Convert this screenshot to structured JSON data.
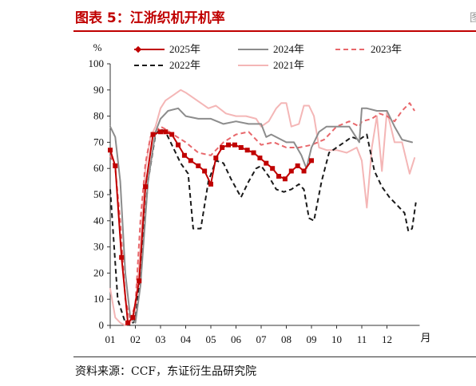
{
  "figure": {
    "title": "图表 5：江浙织机开机率",
    "source": "资料来源：CCF，东证衍生品研究院"
  },
  "colors": {
    "title_red": "#c00000",
    "s2025": "#c00000",
    "s2024": "#8c8c8c",
    "s2023": "#e8676b",
    "s2022": "#1a1a1a",
    "s2021": "#f4b6b6"
  },
  "chart_data": {
    "type": "line",
    "ylabel": "%",
    "xunit": "月",
    "ylim": [
      0,
      100
    ],
    "yticks": [
      0,
      10,
      20,
      30,
      40,
      50,
      60,
      70,
      80,
      90,
      100
    ],
    "xticks": [
      "01",
      "02",
      "03",
      "04",
      "05",
      "06",
      "07",
      "08",
      "09",
      "10",
      "11",
      "12"
    ],
    "xlim": [
      1,
      13.3
    ],
    "grid": false,
    "legend_position": "top",
    "series": [
      {
        "name": "2025年",
        "key": "s2025",
        "style": "solid-marker",
        "x": [
          1.0,
          1.2,
          1.45,
          1.7,
          1.9,
          2.15,
          2.4,
          2.7,
          3.0,
          3.2,
          3.45,
          3.7,
          3.95,
          4.2,
          4.5,
          4.75,
          5.0,
          5.2,
          5.45,
          5.7,
          5.95,
          6.2,
          6.45,
          6.7,
          6.95,
          7.2,
          7.45,
          7.7,
          7.95,
          8.2,
          8.45,
          8.7,
          9.0
        ],
        "y": [
          67,
          61,
          26,
          1,
          3,
          17,
          53,
          73,
          74,
          74,
          73,
          69,
          65,
          63,
          61,
          59,
          54,
          64,
          68,
          69,
          69,
          68,
          67,
          66,
          64,
          62,
          60,
          57,
          56,
          59,
          61,
          59,
          63
        ]
      },
      {
        "name": "2024年",
        "key": "s2024",
        "style": "solid",
        "x": [
          1.0,
          1.2,
          1.4,
          1.6,
          1.8,
          2.0,
          2.2,
          2.5,
          2.8,
          3.0,
          3.3,
          3.7,
          4.0,
          4.5,
          5.0,
          5.5,
          6.0,
          6.5,
          7.0,
          7.2,
          7.4,
          7.8,
          8.0,
          8.3,
          8.6,
          8.8,
          9.0,
          9.3,
          9.6,
          10.0,
          10.5,
          10.9,
          11.0,
          11.2,
          11.6,
          12.0,
          12.3,
          12.6,
          13.0
        ],
        "y": [
          76,
          72,
          55,
          20,
          3,
          1,
          15,
          55,
          74,
          79,
          82,
          83,
          80,
          79,
          79,
          77,
          78,
          77,
          77,
          72,
          73,
          71,
          70,
          70,
          65,
          60,
          68,
          74,
          76,
          76,
          76,
          70,
          83,
          83,
          82,
          82,
          76,
          71,
          70
        ]
      },
      {
        "name": "2023年",
        "key": "s2023",
        "style": "dashed",
        "x": [
          1.0,
          1.2,
          1.4,
          1.6,
          1.8,
          2.0,
          2.2,
          2.4,
          2.6,
          2.8,
          3.0,
          3.2,
          3.5,
          4.0,
          4.5,
          5.0,
          5.5,
          6.0,
          6.5,
          7.0,
          7.5,
          8.0,
          8.5,
          9.0,
          9.5,
          10.0,
          10.5,
          10.9,
          11.0,
          11.4,
          11.7,
          12.0,
          12.3,
          12.6,
          12.9,
          13.1
        ],
        "y": [
          65,
          60,
          40,
          10,
          2,
          8,
          40,
          62,
          72,
          74,
          76,
          75,
          73,
          70,
          66,
          65,
          70,
          73,
          74,
          69,
          70,
          68,
          68,
          69,
          71,
          76,
          78,
          76,
          78,
          79,
          81,
          80,
          78,
          82,
          85,
          82
        ]
      },
      {
        "name": "2022年",
        "key": "s2022",
        "style": "dashed",
        "x": [
          1.0,
          1.3,
          1.6,
          1.8,
          2.0,
          2.2,
          2.5,
          2.8,
          3.0,
          3.2,
          3.5,
          3.8,
          4.1,
          4.3,
          4.6,
          4.9,
          5.2,
          5.5,
          5.8,
          6.2,
          6.5,
          6.8,
          7.0,
          7.3,
          7.6,
          7.9,
          8.2,
          8.5,
          8.7,
          8.9,
          9.1,
          9.4,
          9.7,
          10.0,
          10.3,
          10.6,
          10.9,
          11.2,
          11.5,
          11.8,
          12.1,
          12.4,
          12.7,
          12.85,
          13.0,
          13.15
        ],
        "y": [
          52,
          10,
          1,
          0,
          2,
          20,
          55,
          73,
          75,
          74,
          68,
          62,
          58,
          37,
          37,
          55,
          63,
          62,
          56,
          49,
          55,
          60,
          61,
          57,
          52,
          51,
          52,
          54,
          52,
          41,
          40,
          55,
          66,
          68,
          70,
          72,
          71,
          73,
          59,
          53,
          49,
          46,
          43,
          36,
          37,
          47
        ]
      },
      {
        "name": "2021年",
        "key": "s2021",
        "style": "solid",
        "x": [
          1.0,
          1.2,
          1.4,
          1.6,
          1.8,
          2.0,
          2.2,
          2.4,
          2.6,
          2.8,
          3.0,
          3.2,
          3.5,
          3.8,
          4.0,
          4.3,
          4.6,
          4.9,
          5.2,
          5.6,
          6.0,
          6.4,
          6.8,
          7.0,
          7.3,
          7.6,
          7.8,
          8.0,
          8.2,
          8.5,
          8.7,
          8.9,
          9.1,
          9.3,
          9.6,
          10.0,
          10.4,
          10.8,
          11.0,
          11.2,
          11.4,
          11.6,
          11.8,
          12.0,
          12.3,
          12.6,
          12.9,
          13.1
        ],
        "y": [
          14,
          3,
          1,
          0,
          1,
          5,
          30,
          60,
          72,
          76,
          83,
          86,
          88,
          90,
          89,
          87,
          85,
          83,
          84,
          81,
          80,
          80,
          79,
          76,
          78,
          83,
          85,
          85,
          76,
          77,
          84,
          84,
          80,
          68,
          67,
          67,
          66,
          68,
          63,
          45,
          68,
          80,
          59,
          82,
          70,
          70,
          58,
          64
        ]
      }
    ]
  }
}
